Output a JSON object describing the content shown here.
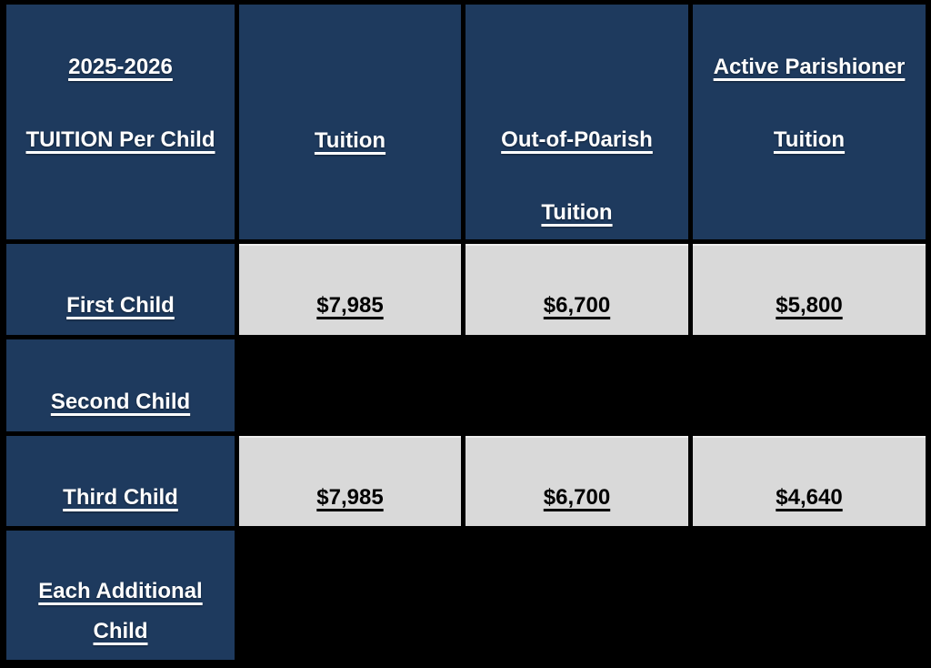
{
  "table": {
    "colors": {
      "cell_navy": "#1E3A5E",
      "cell_gray": "#D9D9D9",
      "background": "#000000",
      "header_text": "#FFFFFF",
      "value_text": "#000000"
    },
    "header": {
      "col1": {
        "line1": "2025-2026",
        "line2": "TUITION Per Child"
      },
      "col2": {
        "line1": "Tuition"
      },
      "col3": {
        "line1": "Out-of-P0arish",
        "line2": "Tuition"
      },
      "col4": {
        "line1": "Active Parishioner",
        "line2": "Tuition"
      }
    },
    "rows": [
      {
        "label": "First Child",
        "values": [
          "$7,985",
          "$6,700",
          "$5,800"
        ]
      },
      {
        "label": "Second Child",
        "values": []
      },
      {
        "label": "Third Child",
        "values": [
          "$7,985",
          "$6,700",
          "$4,640"
        ]
      },
      {
        "label": "Each Additional Child",
        "values": []
      }
    ]
  }
}
